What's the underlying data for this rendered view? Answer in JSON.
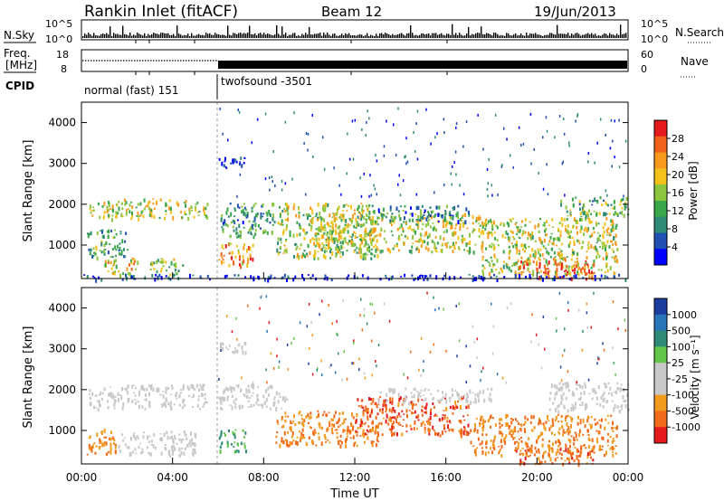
{
  "header": {
    "station": "Rankin Inlet (fitACF)",
    "beam": "Beam 12",
    "date": "19/Jun/2013"
  },
  "summary": {
    "left_labels": [
      "N.Sky",
      "Freq.",
      "[MHz]",
      "CPID"
    ],
    "right_labels": [
      "N.Search",
      "Nave"
    ],
    "sky_ticks": [
      "10^5",
      "10^0"
    ],
    "search_ticks": [
      "10^5",
      "10^0"
    ],
    "freq_ticks": [
      "18",
      "8"
    ],
    "nave_ticks": [
      "60",
      "0"
    ],
    "cpid_segments": [
      "normal (fast) 151",
      "twofsound -3501"
    ]
  },
  "colors": {
    "power_scale": [
      "#0000ff",
      "#1f4fb0",
      "#2f8a78",
      "#3aa64a",
      "#8cc63f",
      "#f2c21b",
      "#f79a1d",
      "#f1621d",
      "#e41a1c"
    ],
    "velocity_scale": [
      "#1a3d9e",
      "#2a74b8",
      "#2f8a78",
      "#62c64a",
      "#c8c8c8",
      "#c8c8c8",
      "#f29a1b",
      "#f26b1b",
      "#e41a1c"
    ]
  },
  "chart_data": [
    {
      "type": "heatmap",
      "name": "power",
      "ylabel": "Slant Range [km]",
      "yticks": [
        1000,
        2000,
        3000,
        4000
      ],
      "ylim": [
        180,
        4500
      ],
      "xlim": [
        0,
        24
      ],
      "colorbar": {
        "label": "Power [dB]",
        "ticks": [
          4,
          8,
          12,
          16,
          20,
          24,
          28
        ],
        "range": [
          0,
          32
        ]
      },
      "regions": [
        {
          "t0": 0.3,
          "t1": 5.5,
          "r0": 1650,
          "r1": 2150,
          "level": 0.55
        },
        {
          "t0": 0.2,
          "t1": 2.0,
          "r0": 700,
          "r1": 1400,
          "level": 0.35
        },
        {
          "t0": 1.0,
          "t1": 2.5,
          "r0": 250,
          "r1": 700,
          "level": 0.6
        },
        {
          "t0": 3.0,
          "t1": 4.5,
          "r0": 250,
          "r1": 700,
          "level": 0.45
        },
        {
          "t0": 6.0,
          "t1": 8.5,
          "r0": 1200,
          "r1": 2050,
          "level": 0.3
        },
        {
          "t0": 6.0,
          "t1": 7.5,
          "r0": 500,
          "r1": 1100,
          "level": 0.75
        },
        {
          "t0": 8.5,
          "t1": 13.0,
          "r0": 700,
          "r1": 2050,
          "level": 0.5
        },
        {
          "t0": 10.0,
          "t1": 18.0,
          "r0": 850,
          "r1": 1800,
          "level": 0.55
        },
        {
          "t0": 13.0,
          "t1": 17.0,
          "r0": 1600,
          "r1": 2000,
          "level": 0.3
        },
        {
          "t0": 17.5,
          "t1": 23.5,
          "r0": 300,
          "r1": 1700,
          "level": 0.55
        },
        {
          "t0": 19.0,
          "t1": 22.5,
          "r0": 200,
          "r1": 700,
          "level": 0.85
        },
        {
          "t0": 21.0,
          "t1": 24.0,
          "r0": 1700,
          "r1": 2200,
          "level": 0.4
        },
        {
          "t0": 6.0,
          "t1": 7.2,
          "r0": 2900,
          "r1": 3200,
          "level": 0.05
        },
        {
          "t0": 0.0,
          "t1": 24.0,
          "r0": 180,
          "r1": 300,
          "level": 0.08
        }
      ]
    },
    {
      "type": "heatmap",
      "name": "velocity",
      "ylabel": "Slant Range [km]",
      "yticks": [
        1000,
        2000,
        3000,
        4000
      ],
      "ylim": [
        180,
        4500
      ],
      "xlim": [
        0,
        24
      ],
      "xticks": [
        "00:00",
        "04:00",
        "08:00",
        "12:00",
        "16:00",
        "20:00",
        "00:00"
      ],
      "xlabel": "Time UT",
      "colorbar": {
        "label": "Velocity [m s⁻¹]",
        "ticks": [
          1000,
          500,
          100,
          25,
          -25,
          -100,
          -500,
          -1000
        ]
      },
      "regions": [
        {
          "t0": 0.3,
          "t1": 5.5,
          "r0": 1550,
          "r1": 2150,
          "level": 4.5
        },
        {
          "t0": 6.0,
          "t1": 9.0,
          "r0": 1550,
          "r1": 2150,
          "level": 4.5
        },
        {
          "t0": 0.2,
          "t1": 1.5,
          "r0": 400,
          "r1": 1100,
          "level": 6.5
        },
        {
          "t0": 1.5,
          "t1": 5.0,
          "r0": 400,
          "r1": 1000,
          "level": 4.5
        },
        {
          "t0": 6.0,
          "t1": 7.2,
          "r0": 500,
          "r1": 1050,
          "level": 2.5
        },
        {
          "t0": 8.5,
          "t1": 13.0,
          "r0": 650,
          "r1": 1500,
          "level": 6.5
        },
        {
          "t0": 12.0,
          "t1": 17.0,
          "r0": 900,
          "r1": 1850,
          "level": 7.2
        },
        {
          "t0": 13.0,
          "t1": 18.0,
          "r0": 1700,
          "r1": 2050,
          "level": 4.5
        },
        {
          "t0": 17.0,
          "t1": 23.5,
          "r0": 400,
          "r1": 1400,
          "level": 6.5
        },
        {
          "t0": 19.0,
          "t1": 22.5,
          "r0": 200,
          "r1": 600,
          "level": 7.0
        },
        {
          "t0": 20.5,
          "t1": 24.0,
          "r0": 1500,
          "r1": 2200,
          "level": 4.5
        },
        {
          "t0": 6.0,
          "t1": 7.2,
          "r0": 2900,
          "r1": 3200,
          "level": 4.5
        }
      ]
    }
  ]
}
